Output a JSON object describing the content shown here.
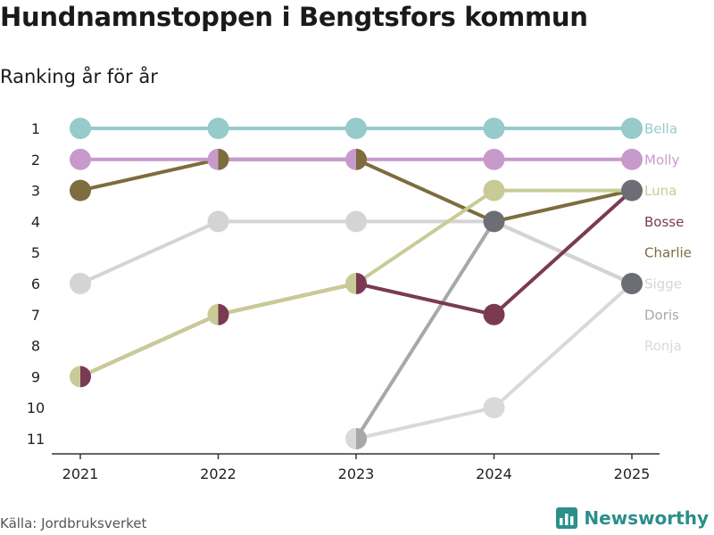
{
  "title": "Hundnamnstoppen i Bengtsfors kommun",
  "subtitle": "Ranking år för år",
  "source": "Källa: Jordbruksverket",
  "brand": {
    "name": "Newsworthy",
    "icon": "bar-chart-logo-icon"
  },
  "chart_data": {
    "type": "line",
    "title": "Hundnamnstoppen i Bengtsfors kommun",
    "subtitle": "Ranking år för år",
    "xlabel": "",
    "ylabel": "",
    "x": [
      "2021",
      "2022",
      "2023",
      "2024",
      "2025"
    ],
    "y_ticks": [
      "1",
      "2",
      "3",
      "4",
      "5",
      "6",
      "7",
      "8",
      "9",
      "10",
      "11"
    ],
    "ylim": [
      1,
      11
    ],
    "y_inverted": true,
    "series": [
      {
        "name": "Ronja",
        "color": "#d9d9d9",
        "values": [
          null,
          null,
          11,
          10,
          6
        ]
      },
      {
        "name": "Doris",
        "color": "#a8a8a8",
        "values": [
          null,
          null,
          11,
          4,
          6
        ]
      },
      {
        "name": "Sigge",
        "color": "#d4d4d4",
        "values": [
          6,
          4,
          4,
          4,
          6
        ]
      },
      {
        "name": "Charlie",
        "color": "#7d6c3d",
        "values": [
          3,
          2,
          2,
          4,
          3
        ]
      },
      {
        "name": "Bosse",
        "color": "#7a3b52",
        "values": [
          9,
          7,
          6,
          7,
          3
        ]
      },
      {
        "name": "Luna",
        "color": "#c9cb96",
        "values": [
          9,
          7,
          6,
          3,
          3
        ]
      },
      {
        "name": "Molly",
        "color": "#c89acb",
        "values": [
          2,
          2,
          2,
          2,
          2
        ]
      },
      {
        "name": "Bella",
        "color": "#97cacb",
        "values": [
          1,
          1,
          1,
          1,
          1
        ]
      }
    ],
    "ties": [
      {
        "x": "2021",
        "rank": 9,
        "colors": [
          "#c9cb96",
          "#7a3b52"
        ]
      },
      {
        "x": "2022",
        "rank": 2,
        "colors": [
          "#c89acb",
          "#7d6c3d"
        ]
      },
      {
        "x": "2022",
        "rank": 7,
        "colors": [
          "#c9cb96",
          "#7a3b52"
        ]
      },
      {
        "x": "2023",
        "rank": 2,
        "colors": [
          "#c89acb",
          "#7d6c3d"
        ]
      },
      {
        "x": "2023",
        "rank": 6,
        "colors": [
          "#c9cb96",
          "#7a3b52"
        ]
      },
      {
        "x": "2023",
        "rank": 11,
        "colors": [
          "#d9d9d9",
          "#a8a8a8"
        ]
      },
      {
        "x": "2024",
        "rank": 4,
        "colors": [
          "#6d6d75"
        ]
      },
      {
        "x": "2025",
        "rank": 3,
        "colors": [
          "#6d6d75"
        ]
      },
      {
        "x": "2025",
        "rank": 6,
        "colors": [
          "#6d6d75"
        ]
      }
    ],
    "end_labels": [
      {
        "name": "Bella",
        "color": "#97cacb"
      },
      {
        "name": "Molly",
        "color": "#c89acb"
      },
      {
        "name": "Luna",
        "color": "#c9cb96"
      },
      {
        "name": "Bosse",
        "color": "#7a3b52"
      },
      {
        "name": "Charlie",
        "color": "#7d6c3d"
      },
      {
        "name": "Sigge",
        "color": "#d4d4d4"
      },
      {
        "name": "Doris",
        "color": "#a8a8a8"
      },
      {
        "name": "Ronja",
        "color": "#d9d9d9"
      }
    ],
    "grid": false,
    "legend": "end-of-line labels"
  }
}
